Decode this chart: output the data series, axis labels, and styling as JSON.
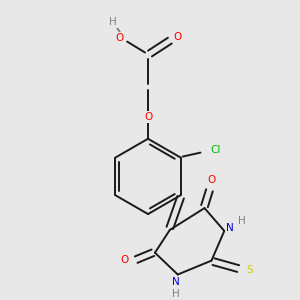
{
  "background_color": "#e8e8e8",
  "bond_color": "#1a1a1a",
  "atom_colors": {
    "O": "#ff0000",
    "N": "#0000cc",
    "S": "#cccc00",
    "Cl": "#00bb00",
    "H": "#808080",
    "C": "#1a1a1a"
  },
  "figsize": [
    3.0,
    3.0
  ],
  "dpi": 100,
  "lw": 1.4,
  "fontsize": 7.5
}
